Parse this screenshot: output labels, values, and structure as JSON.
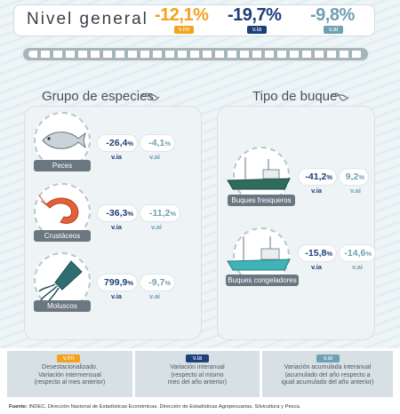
{
  "header": {
    "title": "Nivel general",
    "values": [
      {
        "value": "-12,1%",
        "badge": "v.im",
        "color": "#f3a21f"
      },
      {
        "value": "-19,7%",
        "badge": "v.ia",
        "color": "#1d3f7a"
      },
      {
        "value": "-9,8%",
        "badge": "v.ai",
        "color": "#6fa0b3"
      }
    ]
  },
  "species": {
    "title": "Grupo de especies",
    "items": [
      {
        "label": "Peces",
        "ia": "-26,4",
        "ai": "-4,1",
        "icon": "fish-icon"
      },
      {
        "label": "Crustáceos",
        "ia": "-36,3",
        "ai": "-11,2",
        "icon": "shrimp-icon"
      },
      {
        "label": "Moluscos",
        "ia": "799,9",
        "ai": "-9,7",
        "icon": "squid-icon"
      }
    ]
  },
  "vessels": {
    "title": "Tipo de buque",
    "items": [
      {
        "label": "Buques fresqueros",
        "ia": "-41,2",
        "ai": "9,2",
        "icon": "fresh-boat-icon"
      },
      {
        "label": "Buques congeladores",
        "ia": "-15,8",
        "ai": "-14,6",
        "icon": "freezer-boat-icon"
      }
    ]
  },
  "labels": {
    "ia": "v.ia",
    "ai": "v.ai",
    "pct": "%"
  },
  "legend": [
    {
      "badge": "v.im",
      "line1": "Desestacionalizado.",
      "line2": "Variación intermensual",
      "line3": "(respecto al mes anterior)"
    },
    {
      "badge": "v.ia",
      "line1": "Variación interanual",
      "line2": "(respecto al mismo",
      "line3": "mes del año anterior)"
    },
    {
      "badge": "v.ai",
      "line1": "Variación acumulada interanual",
      "line2": "(acumulado del año respecto a",
      "line3": "igual acumulado del año anterior)"
    }
  ],
  "footer": {
    "bold": "Fuente:",
    "text": " INDEC, Dirección Nacional de Estadísticas Económicas. Dirección de Estadísticas Agropecuarias, Silvicultura y Pesca."
  },
  "colors": {
    "vim": "#f3a21f",
    "via": "#1d3f7a",
    "vai": "#6fa0b3"
  }
}
